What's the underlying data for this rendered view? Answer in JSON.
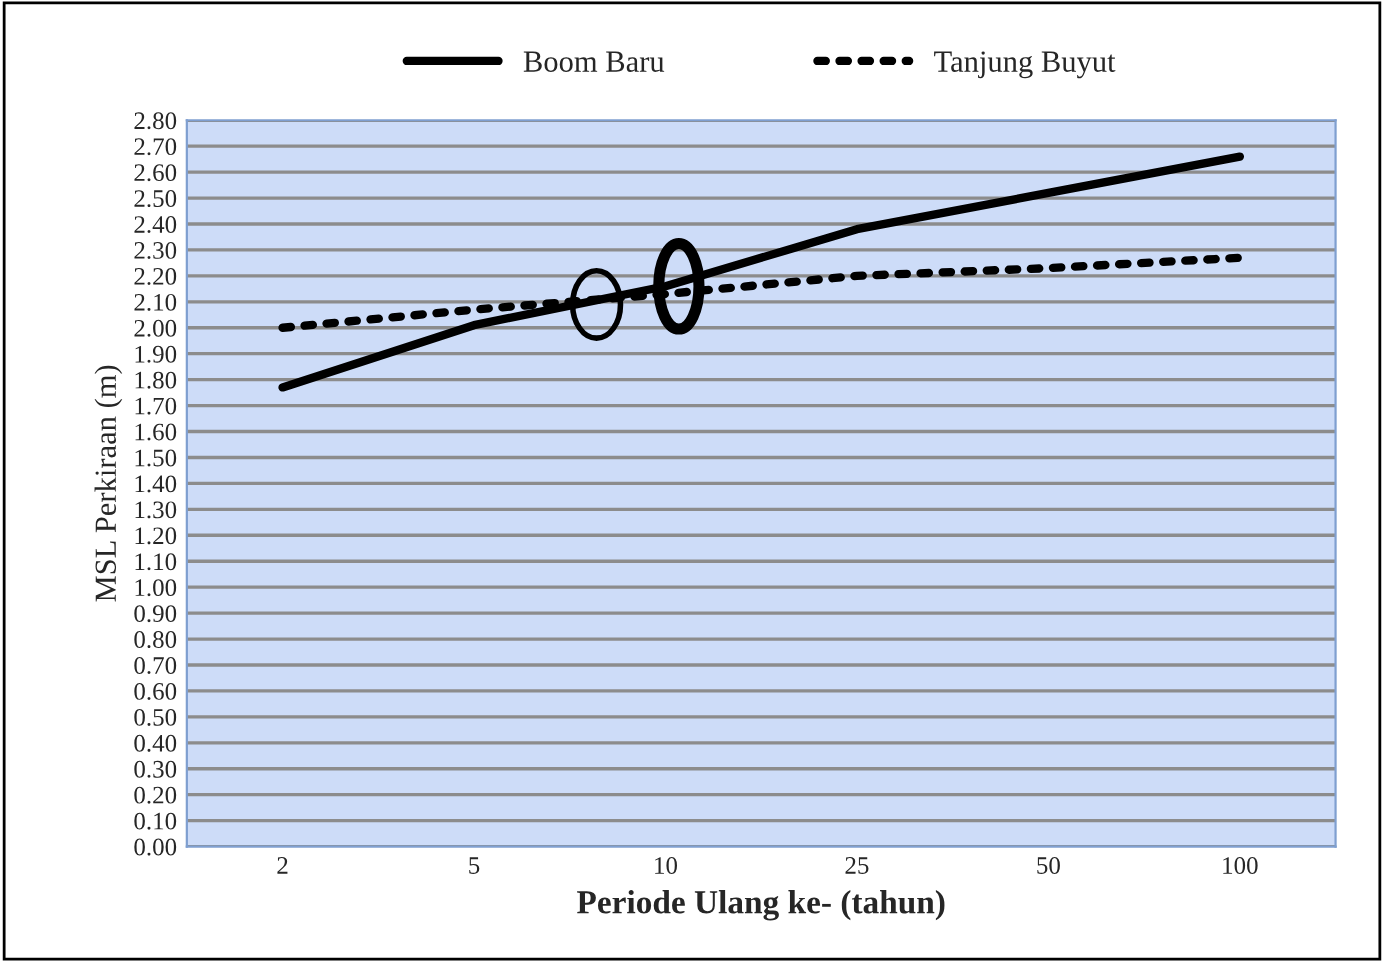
{
  "chart_data": {
    "type": "line",
    "xlabel": "Periode Ulang ke- (tahun)",
    "ylabel": "MSL Perkiraan (m)",
    "categories": [
      "2",
      "5",
      "10",
      "25",
      "50",
      "100"
    ],
    "series": [
      {
        "name": "Boom Baru",
        "color": "#000000",
        "line_style": "solid",
        "values": [
          1.77,
          2.01,
          2.16,
          2.38,
          2.52,
          2.66
        ]
      },
      {
        "name": "Tanjung Buyut",
        "color": "#000000",
        "line_style": "dotted",
        "values": [
          2.0,
          2.07,
          2.13,
          2.2,
          2.23,
          2.27
        ]
      }
    ],
    "ylim": [
      0,
      2.8
    ],
    "yticks": [
      {
        "value": 0,
        "label": "0.00"
      },
      {
        "value": 0.1,
        "label": "0.10"
      },
      {
        "value": 0.2,
        "label": "0.20"
      },
      {
        "value": 0.3,
        "label": "0.30"
      },
      {
        "value": 0.4,
        "label": "0.40"
      },
      {
        "value": 0.5,
        "label": "0.50"
      },
      {
        "value": 0.6,
        "label": "0.60"
      },
      {
        "value": 0.7,
        "label": "0.70"
      },
      {
        "value": 0.8,
        "label": "0.80"
      },
      {
        "value": 0.9,
        "label": "0.90"
      },
      {
        "value": 1.0,
        "label": "1.00"
      },
      {
        "value": 1.1,
        "label": "1.10"
      },
      {
        "value": 1.2,
        "label": "1.20"
      },
      {
        "value": 1.3,
        "label": "1.30"
      },
      {
        "value": 1.4,
        "label": "1.40"
      },
      {
        "value": 1.5,
        "label": "1.50"
      },
      {
        "value": 1.6,
        "label": "1.60"
      },
      {
        "value": 1.7,
        "label": "1.70"
      },
      {
        "value": 1.8,
        "label": "1.80"
      },
      {
        "value": 1.9,
        "label": "1.90"
      },
      {
        "value": 2.0,
        "label": "2.00"
      },
      {
        "value": 2.1,
        "label": "2.10"
      },
      {
        "value": 2.2,
        "label": "2.20"
      },
      {
        "value": 2.3,
        "label": "2.30"
      },
      {
        "value": 2.4,
        "label": "2.40"
      },
      {
        "value": 2.5,
        "label": "2.50"
      },
      {
        "value": 2.6,
        "label": "2.60"
      },
      {
        "value": 2.7,
        "label": "2.70"
      },
      {
        "value": 2.8,
        "label": "2.80"
      }
    ],
    "grid": "y",
    "legend": "top",
    "marker": "none"
  }
}
